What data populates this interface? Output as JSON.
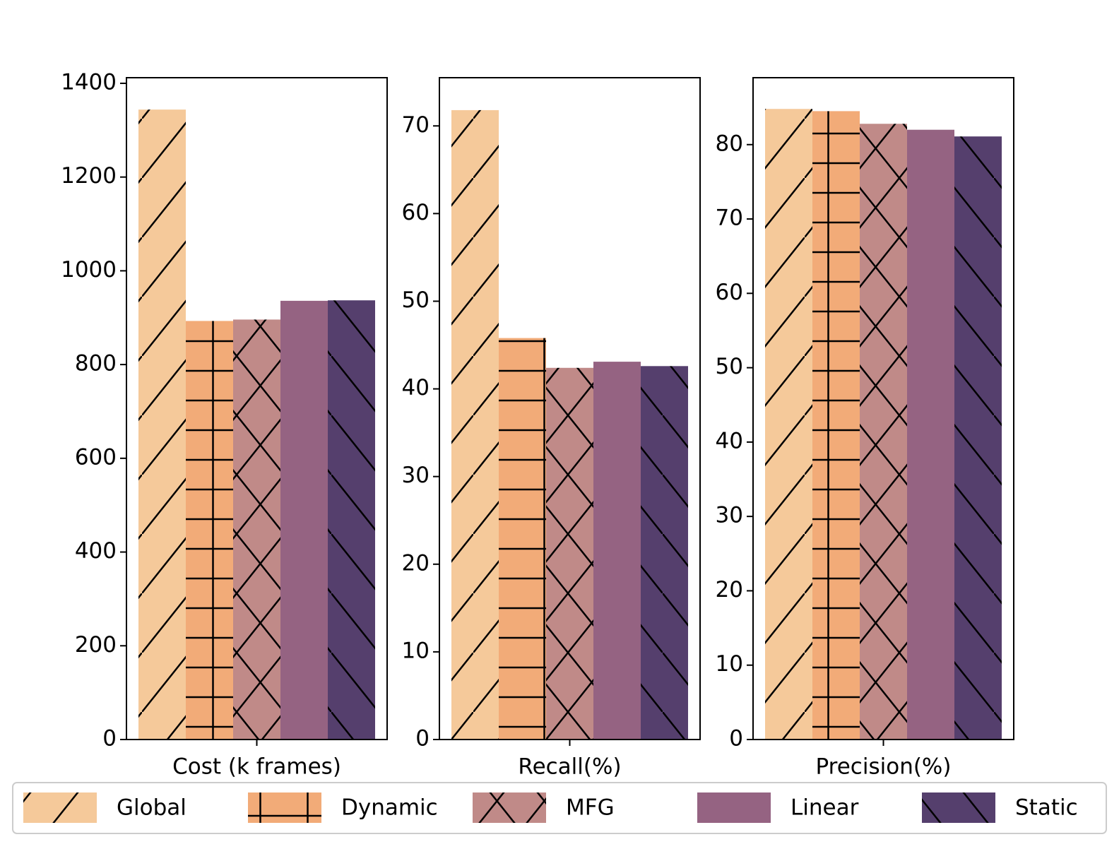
{
  "legend": [
    {
      "name": "Global",
      "color": "#f5c99a",
      "hatch": "/"
    },
    {
      "name": "Dynamic",
      "color": "#f2ab78",
      "hatch": "+"
    },
    {
      "name": "MFG",
      "color": "#c08a88",
      "hatch": "x"
    },
    {
      "name": "Linear",
      "color": "#956382"
    },
    {
      "name": "Static",
      "color": "#553f6d",
      "hatch": "\\"
    }
  ],
  "chart_data": [
    {
      "type": "bar",
      "categories": [
        "Cost (k frames)"
      ],
      "series": [
        {
          "values": [
            1344
          ]
        },
        {
          "values": [
            893
          ]
        },
        {
          "values": [
            896
          ]
        },
        {
          "values": [
            936
          ]
        },
        {
          "values": [
            937
          ]
        }
      ],
      "ylim": [
        0,
        1412
      ],
      "yticks": [
        0,
        200,
        400,
        600,
        800,
        1000,
        1200,
        1400
      ]
    },
    {
      "type": "bar",
      "categories": [
        "Recall(%)"
      ],
      "series": [
        {
          "values": [
            71.8
          ]
        },
        {
          "values": [
            45.8
          ]
        },
        {
          "values": [
            42.4
          ]
        },
        {
          "values": [
            43.1
          ]
        },
        {
          "values": [
            42.6
          ]
        }
      ],
      "ylim": [
        0,
        75.5
      ],
      "yticks": [
        0,
        10,
        20,
        30,
        40,
        50,
        60,
        70
      ]
    },
    {
      "type": "bar",
      "categories": [
        "Precision(%)"
      ],
      "series": [
        {
          "values": [
            84.8
          ]
        },
        {
          "values": [
            84.5
          ]
        },
        {
          "values": [
            82.8
          ]
        },
        {
          "values": [
            82.0
          ]
        },
        {
          "values": [
            81.1
          ]
        }
      ],
      "ylim": [
        0,
        89.0
      ],
      "yticks": [
        0,
        10,
        20,
        30,
        40,
        50,
        60,
        70,
        80
      ]
    }
  ]
}
